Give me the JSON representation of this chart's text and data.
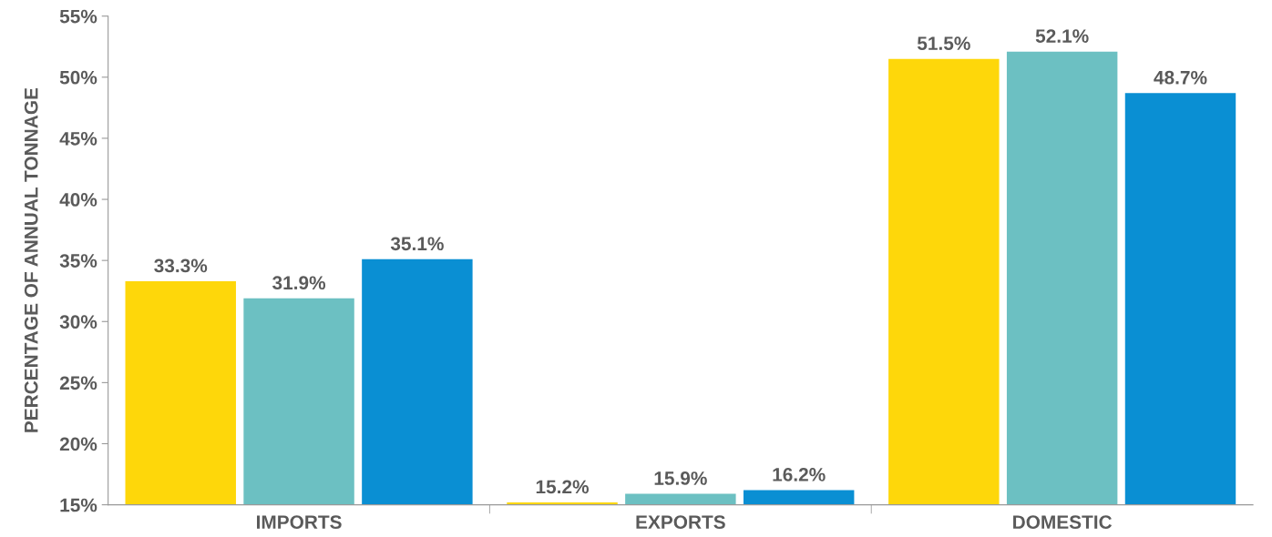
{
  "chart_data": {
    "type": "bar",
    "ylabel": "PERCENTAGE OF ANNUAL TONNAGE",
    "categories": [
      "IMPORTS",
      "EXPORTS",
      "DOMESTIC"
    ],
    "series": [
      {
        "color": "#fed70a",
        "values": [
          33.3,
          15.2,
          51.5
        ],
        "value_labels": [
          "33.3%",
          "15.2%",
          "51.5%"
        ]
      },
      {
        "color": "#6cc0c2",
        "values": [
          31.9,
          15.9,
          52.1
        ],
        "value_labels": [
          "31.9%",
          "15.9%",
          "52.1%"
        ]
      },
      {
        "color": "#0a8fd3",
        "values": [
          35.1,
          16.2,
          48.7
        ],
        "value_labels": [
          "35.1%",
          "16.2%",
          "48.7%"
        ]
      }
    ],
    "ylim": [
      15,
      55
    ],
    "yticks": [
      {
        "value": 15,
        "label": "15%"
      },
      {
        "value": 20,
        "label": "20%"
      },
      {
        "value": 25,
        "label": "25%"
      },
      {
        "value": 30,
        "label": "30%"
      },
      {
        "value": 35,
        "label": "35%"
      },
      {
        "value": 40,
        "label": "40%"
      },
      {
        "value": 45,
        "label": "45%"
      },
      {
        "value": 50,
        "label": "50%"
      },
      {
        "value": 55,
        "label": "55%"
      }
    ],
    "grid": false
  }
}
